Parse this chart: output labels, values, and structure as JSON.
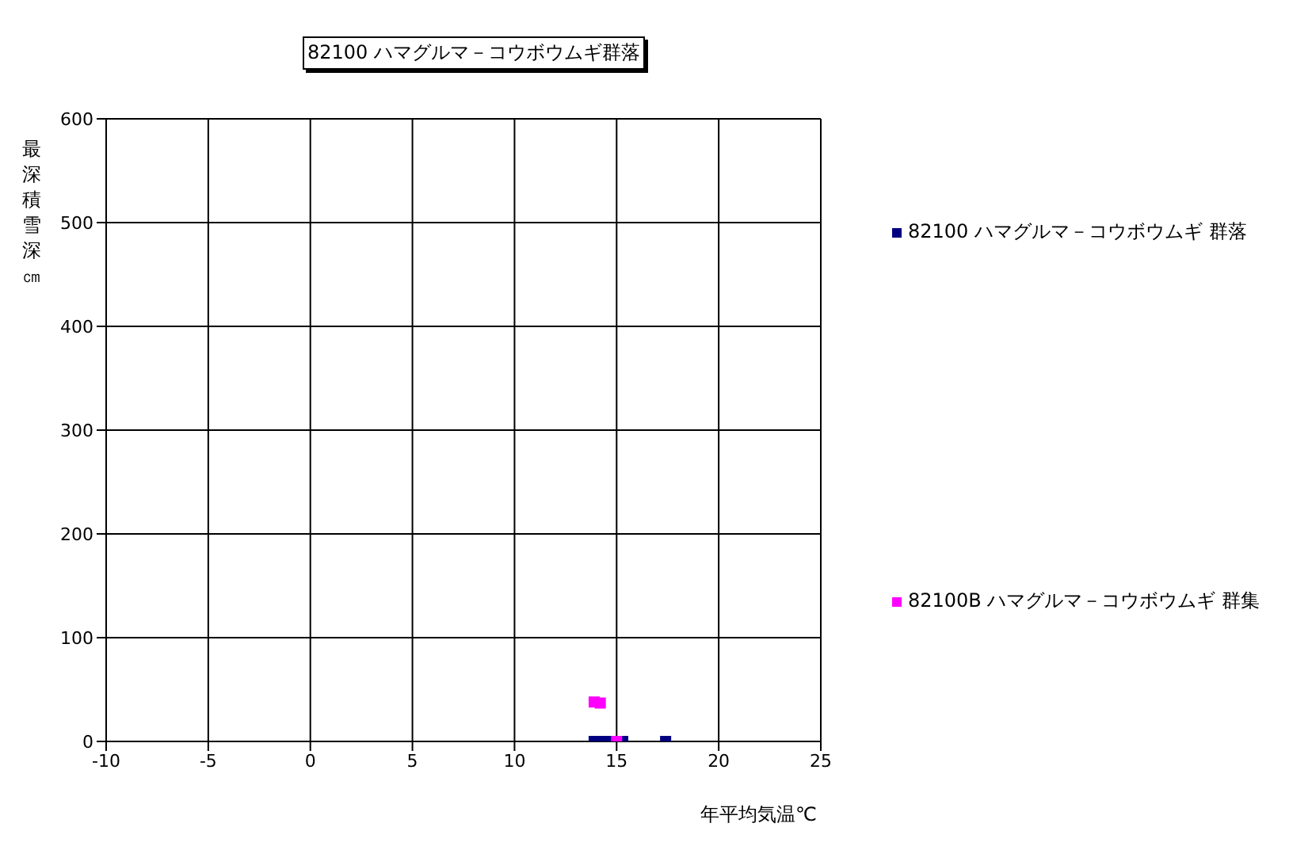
{
  "chart_data": {
    "type": "scatter",
    "title": "82100 ハマグルマ－コウボウムギ群落",
    "xlabel": "年平均気温℃",
    "ylabel": "最深積雪深㎝",
    "series": [
      {
        "name": "82100 ハマグルマ－コウボウムギ 群落",
        "color": "#000080",
        "x": [
          13.9,
          14.3,
          14.7,
          15.3,
          17.4
        ],
        "values": [
          0,
          0,
          0,
          0,
          0
        ]
      },
      {
        "name": "82100B ハマグルマ－コウボウムギ 群集",
        "color": "#ff00ff",
        "x": [
          13.9,
          14.2,
          15.0
        ],
        "values": [
          38,
          37,
          0
        ]
      }
    ],
    "xlim": [
      -10,
      25
    ],
    "xticks": [
      -10,
      -5,
      0,
      5,
      10,
      15,
      20,
      25
    ],
    "ylim": [
      0,
      600
    ],
    "yticks": [
      0,
      100,
      200,
      300,
      400,
      500,
      600
    ],
    "grid": true,
    "legend": "right",
    "marker": "square"
  }
}
